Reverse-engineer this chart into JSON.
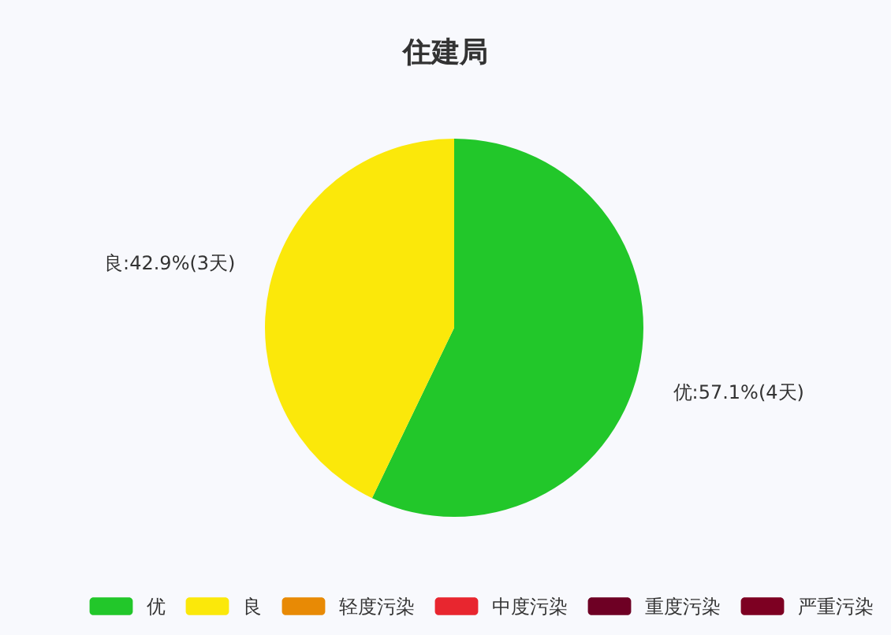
{
  "chart_data": {
    "type": "pie",
    "title": "住建局",
    "categories": [
      "优",
      "良",
      "轻度污染",
      "中度污染",
      "重度污染",
      "严重污染"
    ],
    "values": [
      4,
      3,
      0,
      0,
      0,
      0
    ],
    "value_labels": [
      "优:57.1%(4天)",
      "良:42.9%(3天)",
      null,
      null,
      null,
      null
    ],
    "colors": [
      "#22c72a",
      "#fbe80a",
      "#e88a05",
      "#e8262f",
      "#6e0024",
      "#7d0022"
    ],
    "legend": "bottom"
  }
}
